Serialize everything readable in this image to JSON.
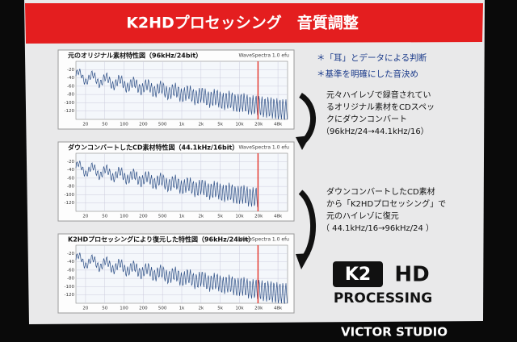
{
  "header": {
    "title": "K2HDプロセッシング　音質調整"
  },
  "panels": [
    {
      "title": "元のオリジナル素材特性図（96kHz/24bit）",
      "software": "WaveSpectra 1.0 efu",
      "y_labels": [
        "-20",
        "-40",
        "-60",
        "-80",
        "-100",
        "-120"
      ],
      "x_labels": [
        "20",
        "50",
        "100",
        "200",
        "500",
        "1k",
        "2k",
        "5k",
        "10k",
        "20k",
        "48k"
      ]
    },
    {
      "title": "ダウンコンバートしたCD素材特性図（44.1kHz/16bit）",
      "software": "WaveSpectra 1.0 efu",
      "y_labels": [
        "-20",
        "-40",
        "-60",
        "-80",
        "-100",
        "-120"
      ],
      "x_labels": [
        "20",
        "50",
        "100",
        "200",
        "500",
        "1k",
        "2k",
        "5k",
        "10k",
        "20k",
        "48k"
      ]
    },
    {
      "title": "K2HDプロセッシングにより復元した特性図（96kHz/24bit）",
      "software": "WaveSpectra 1.0 efu",
      "y_labels": [
        "-20",
        "-40",
        "-60",
        "-80",
        "-100",
        "-120"
      ],
      "x_labels": [
        "20",
        "50",
        "100",
        "200",
        "500",
        "1k",
        "2k",
        "5k",
        "10k",
        "20k",
        "48k"
      ]
    }
  ],
  "bullets": [
    "＊「耳」とデータによる判断",
    "＊基準を明確にした音決め"
  ],
  "notes": [
    [
      "元々ハイレゾで録音されてい",
      "るオリジナル素材をCDスペッ",
      "クにダウンコンバート",
      "（96kHz/24→44.1kHz/16）"
    ],
    [
      "ダウンコンバートしたCD素材",
      "から「K2HDプロセッシング」で",
      "元のハイレゾに復元",
      "（ 44.1kHz/16→96kHz/24 ）"
    ]
  ],
  "logo": {
    "mark": "K2",
    "hd": "HD",
    "text": "PROCESSING"
  },
  "footer": "VICTOR STUDIO"
}
